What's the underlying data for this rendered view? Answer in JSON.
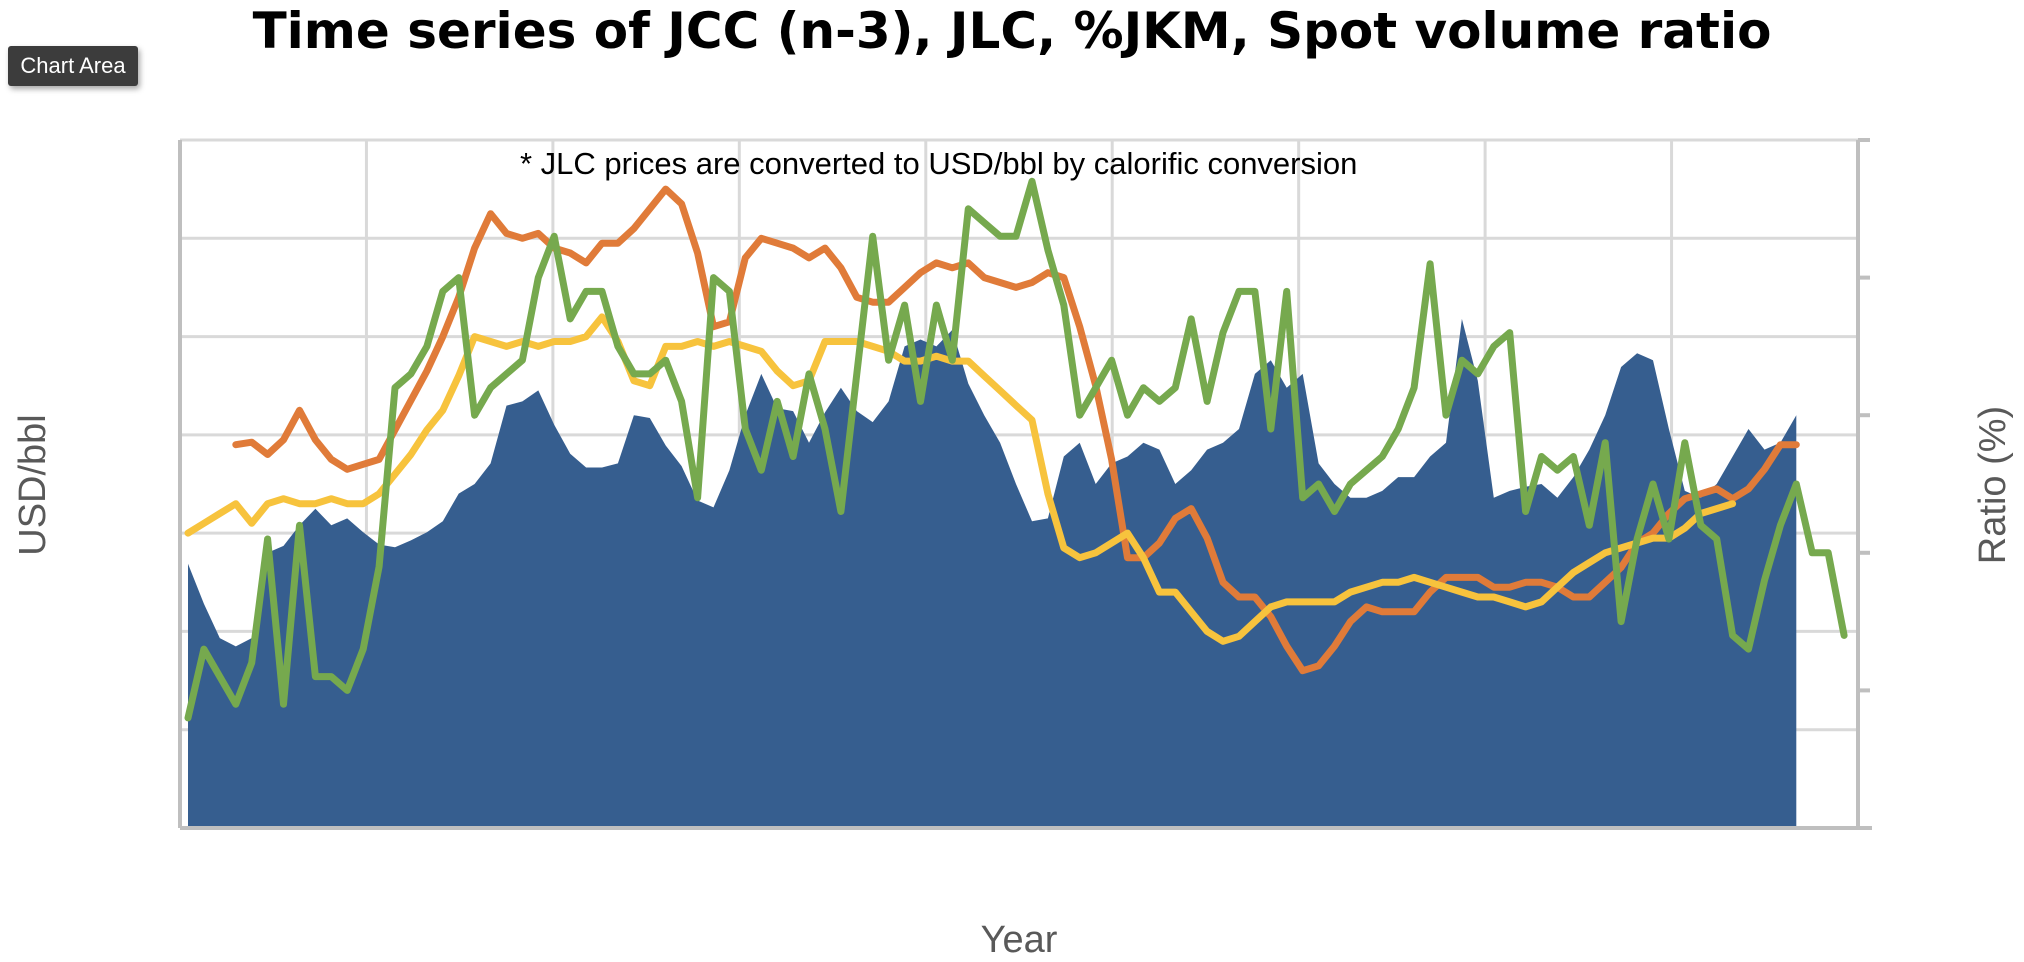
{
  "tooltip": {
    "label": "Chart Area"
  },
  "chart_data": {
    "type": "area",
    "title": "Time series of JCC (n-3), JLC, %JKM, Spot volume ratio",
    "annotation": "* JLC prices are converted to USD/bbl by calorific conversion",
    "xlabel": "Year",
    "ylabel": "USD/bbl",
    "ylabel_right": "Ratio (%)",
    "grid": true,
    "legend": "none",
    "ylim": [
      0,
      140
    ],
    "ylim_right": [
      0,
      50
    ],
    "x_range": [
      0,
      105
    ],
    "series": [
      {
        "key": "area",
        "render": "area",
        "axis": "right",
        "color": "#365e8f",
        "values": [
          19.2,
          16.3,
          13.8,
          13.2,
          13.8,
          20.0,
          20.5,
          22.0,
          23.2,
          22.0,
          22.5,
          21.5,
          20.6,
          20.4,
          20.9,
          21.5,
          22.3,
          24.3,
          25.0,
          26.5,
          30.7,
          31.0,
          31.8,
          29.3,
          27.2,
          26.2,
          26.2,
          26.5,
          30.0,
          29.8,
          27.8,
          26.3,
          23.8,
          23.3,
          26.0,
          30.0,
          33.0,
          30.5,
          30.3,
          28.0,
          30.2,
          32.0,
          30.3,
          29.5,
          31.0,
          35.0,
          35.5,
          35.0,
          36.2,
          32.3,
          30.0,
          28.0,
          25.0,
          22.3,
          22.5,
          27.0,
          28.0,
          25.0,
          26.5,
          27.0,
          28.0,
          27.5,
          25.0,
          26.0,
          27.5,
          28.0,
          29.0,
          33.0,
          34.0,
          32.0,
          33.0,
          26.5,
          25.0,
          24.0,
          24.0,
          24.5,
          25.5,
          25.5,
          27.0,
          28.0,
          37.0,
          32.5,
          24.0,
          24.5,
          24.8,
          25.0,
          24.0,
          25.5,
          27.5,
          30.0,
          33.5,
          34.5,
          34.0,
          29.0,
          24.5,
          24.0,
          25.0,
          27.0,
          29.0,
          27.5,
          28.0,
          30.0
        ]
      },
      {
        "key": "orange",
        "render": "line",
        "axis": "left",
        "color": "#e07b39",
        "values": [
          null,
          null,
          null,
          78,
          78.5,
          76,
          79,
          85,
          79,
          75,
          73,
          74,
          75,
          81,
          87,
          93,
          100,
          108,
          118,
          125,
          121,
          120,
          121,
          118,
          117,
          115,
          119,
          119,
          122,
          126,
          130,
          127,
          117,
          102,
          103,
          116,
          120,
          119,
          118,
          116,
          118,
          114,
          108,
          107,
          107,
          110,
          113,
          115,
          114,
          115,
          112,
          111,
          110,
          111,
          113,
          112,
          102,
          90,
          75,
          55,
          55,
          58,
          63,
          65,
          59,
          50,
          47,
          47,
          43,
          37,
          32,
          33,
          37,
          42,
          45,
          44,
          44,
          44,
          48,
          51,
          51,
          51,
          49,
          49,
          50,
          50,
          49,
          47,
          47,
          50,
          53,
          58,
          60,
          64,
          67,
          68,
          69,
          67,
          69,
          73,
          78,
          78
        ]
      },
      {
        "key": "yellow",
        "render": "line",
        "axis": "left",
        "color": "#f7c33d",
        "values": [
          60,
          62,
          64,
          66,
          62,
          66,
          67,
          66,
          66,
          67,
          66,
          66,
          68,
          72,
          76,
          81,
          85,
          92,
          100,
          99,
          98,
          99,
          98,
          99,
          99,
          100,
          104,
          99,
          91,
          90,
          98,
          98,
          99,
          98,
          99,
          98,
          97,
          93,
          90,
          91,
          99,
          99,
          99,
          98,
          97,
          95,
          95,
          96,
          95,
          95,
          92,
          89,
          86,
          83,
          68,
          57,
          55,
          56,
          58,
          60,
          55,
          48,
          48,
          44,
          40,
          38,
          39,
          42,
          45,
          46,
          46,
          46,
          46,
          48,
          49,
          50,
          50,
          51,
          50,
          49,
          48,
          47,
          47,
          46,
          45,
          46,
          49,
          52,
          54,
          56,
          57,
          58,
          59,
          59,
          61,
          64,
          65,
          66
        ]
      },
      {
        "key": "green",
        "render": "line",
        "axis": "right",
        "color": "#76a94e",
        "values": [
          8,
          13,
          11,
          9,
          12,
          21,
          9,
          22,
          11,
          11,
          10,
          13,
          19,
          32,
          33,
          35,
          39,
          40,
          30,
          32,
          33,
          34,
          40,
          43,
          37,
          39,
          39,
          35,
          33,
          33,
          34,
          31,
          24,
          40,
          39,
          29,
          26,
          31,
          27,
          33,
          29,
          23,
          33,
          43,
          34,
          38,
          31,
          38,
          34,
          45,
          44,
          43,
          43,
          47,
          42,
          38,
          30,
          32,
          34,
          30,
          32,
          31,
          32,
          37,
          31,
          36,
          39,
          39,
          29,
          39,
          24,
          25,
          23,
          25,
          26,
          27,
          29,
          32,
          41,
          30,
          34,
          33,
          35,
          36,
          23,
          27,
          26,
          27,
          22,
          28,
          15,
          21,
          25,
          21,
          28,
          22,
          21,
          14,
          13,
          18,
          22,
          25,
          20,
          20,
          14
        ]
      }
    ]
  }
}
